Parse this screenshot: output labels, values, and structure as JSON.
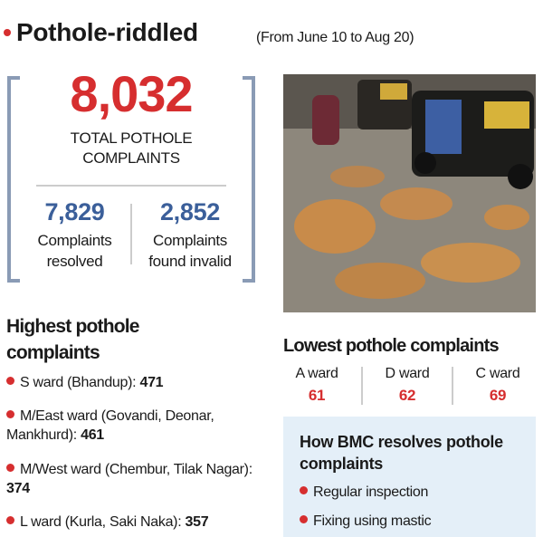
{
  "header": {
    "title": "Pothole-riddled",
    "subtitle": "(From June 10 to Aug 20)"
  },
  "total": {
    "value": "8,032",
    "label": "TOTAL POTHOLE COMPLAINTS"
  },
  "breakdown": [
    {
      "value": "7,829",
      "label": "Complaints resolved"
    },
    {
      "value": "2,852",
      "label": "Complaints found invalid"
    }
  ],
  "highest": {
    "title": "Highest pothole complaints",
    "items": [
      {
        "label": "S ward (Bhandup):",
        "value": "471"
      },
      {
        "label": "M/East ward (Govandi, Deonar, Mankhurd):",
        "value": "461"
      },
      {
        "label": "M/West ward (Chembur, Tilak Nagar):",
        "value": "374"
      },
      {
        "label": "L ward (Kurla, Saki Naka):",
        "value": "357"
      }
    ]
  },
  "lowest": {
    "title": "Lowest pothole complaints",
    "items": [
      {
        "label": "A ward",
        "value": "61"
      },
      {
        "label": "D ward",
        "value": "62"
      },
      {
        "label": "C ward",
        "value": "69"
      }
    ]
  },
  "process": {
    "title": "How BMC resolves pothole complaints",
    "items": [
      "Regular inspection",
      "Fixing using mastic"
    ]
  }
}
